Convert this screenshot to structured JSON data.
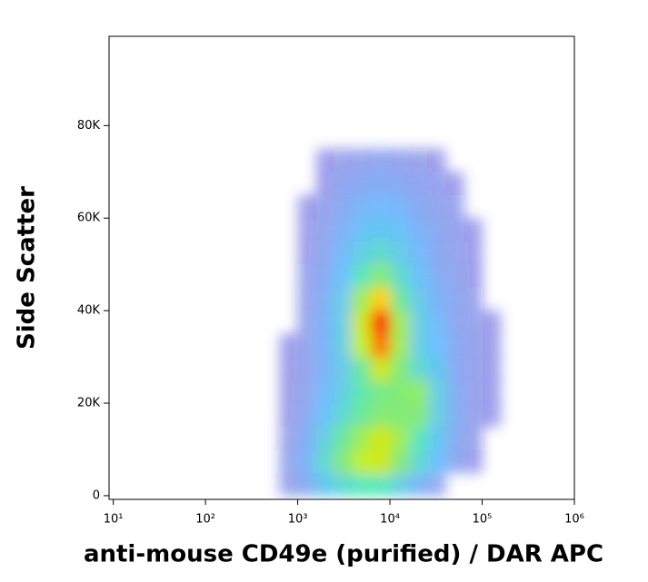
{
  "chart_data": {
    "type": "density",
    "xlabel": "anti-mouse CD49e (purified) / DAR APC",
    "ylabel": "Side Scatter",
    "xscale": "log",
    "xlim": [
      9,
      1000000
    ],
    "ylim": [
      -800,
      99300
    ],
    "xticks": [
      {
        "value": 10,
        "label": "10¹"
      },
      {
        "value": 100,
        "label": "10²"
      },
      {
        "value": 1000,
        "label": "10³"
      },
      {
        "value": 10000,
        "label": "10⁴"
      },
      {
        "value": 100000,
        "label": "10⁵"
      },
      {
        "value": 1000000,
        "label": "10⁶"
      }
    ],
    "yticks": [
      0,
      {
        "value": 20000,
        "label": "20K"
      },
      {
        "value": 40000,
        "label": "40K"
      },
      {
        "value": 60000,
        "label": "60K"
      },
      {
        "value": 80000,
        "label": "80K"
      }
    ],
    "colorscale": [
      "#0000c8",
      "#0090ff",
      "#20e0a0",
      "#c0f020",
      "#ffd000",
      "#ff1a00"
    ],
    "xbins": [
      631,
      1000,
      1585,
      2512,
      3981,
      6310,
      10000,
      15849,
      25119,
      39811,
      63096,
      100000,
      158489,
      251189
    ],
    "ybins": [
      0,
      5000,
      10000,
      15000,
      20000,
      25000,
      30000,
      35000,
      40000,
      45000,
      50000,
      55000,
      60000,
      65000,
      70000,
      75000
    ],
    "z": [
      [
        3,
        10,
        25,
        35,
        40,
        40,
        30,
        15,
        5,
        0,
        0,
        0,
        0
      ],
      [
        5,
        15,
        35,
        50,
        60,
        65,
        50,
        35,
        20,
        8,
        2,
        0,
        0
      ],
      [
        3,
        12,
        30,
        45,
        55,
        65,
        55,
        40,
        25,
        10,
        3,
        0,
        0
      ],
      [
        2,
        8,
        22,
        35,
        45,
        50,
        50,
        50,
        30,
        12,
        4,
        1,
        0
      ],
      [
        1,
        6,
        18,
        30,
        42,
        48,
        50,
        52,
        30,
        12,
        4,
        1,
        0
      ],
      [
        1,
        5,
        15,
        28,
        45,
        65,
        50,
        35,
        25,
        10,
        4,
        1,
        0
      ],
      [
        1,
        5,
        15,
        30,
        60,
        90,
        55,
        30,
        20,
        10,
        4,
        1,
        0
      ],
      [
        0,
        4,
        15,
        30,
        65,
        100,
        55,
        30,
        18,
        8,
        3,
        1,
        0
      ],
      [
        0,
        4,
        13,
        28,
        55,
        80,
        45,
        28,
        15,
        8,
        3,
        0,
        0
      ],
      [
        0,
        3,
        10,
        22,
        40,
        50,
        35,
        22,
        12,
        6,
        2,
        0,
        0
      ],
      [
        0,
        2,
        8,
        18,
        30,
        35,
        28,
        18,
        10,
        5,
        1,
        0,
        0
      ],
      [
        0,
        1,
        6,
        14,
        22,
        25,
        22,
        15,
        8,
        4,
        1,
        0,
        0
      ],
      [
        0,
        1,
        4,
        10,
        16,
        18,
        16,
        10,
        6,
        3,
        0,
        0,
        0
      ],
      [
        0,
        0,
        2,
        7,
        10,
        12,
        10,
        7,
        4,
        1,
        0,
        0,
        0
      ],
      [
        0,
        0,
        1,
        3,
        5,
        6,
        5,
        3,
        1,
        0,
        0,
        0,
        0
      ]
    ]
  }
}
